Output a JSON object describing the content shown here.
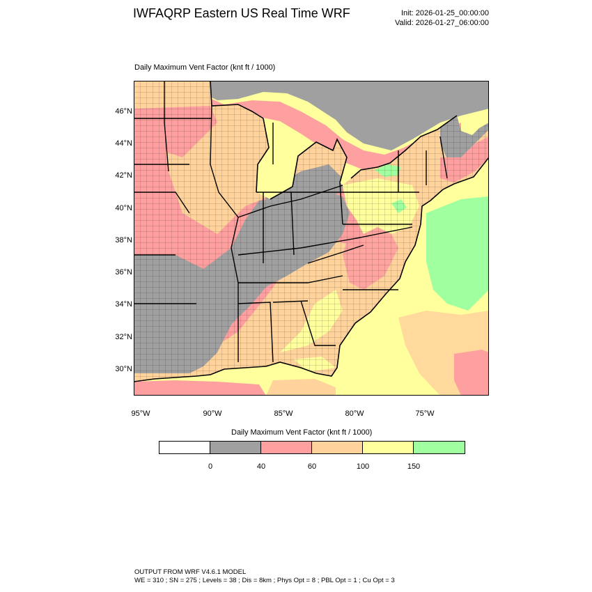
{
  "header": {
    "title": "IWFAQRP Eastern US Real Time WRF",
    "init": "Init: 2026-01-25_00:00:00",
    "valid": "Valid: 2026-01-27_06:00:00"
  },
  "map": {
    "title": "Daily Maximum Vent Factor   (knt ft / 1000)",
    "lat_labels": [
      "46°N",
      "44°N",
      "42°N",
      "40°N",
      "38°N",
      "36°N",
      "34°N",
      "32°N",
      "30°N"
    ],
    "lon_labels": [
      "95°W",
      "90°W",
      "85°W",
      "80°W",
      "75°W"
    ]
  },
  "legend": {
    "title": "Daily Maximum Vent Factor  (knt ft / 1000)",
    "colors": [
      "#ffffff",
      "#a0a0a0",
      "#ffa0a0",
      "#ffd39b",
      "#ffff9e",
      "#a0ff9e"
    ],
    "ticks": [
      "0",
      "40",
      "60",
      "100",
      "150"
    ]
  },
  "footer": {
    "line1": "OUTPUT FROM WRF V4.6.1 MODEL",
    "line2": "WE = 310 ; SN = 275 ; Levels = 38 ; Dis = 8km ; Phys Opt = 8 ; PBL Opt = 1 ; Cu Opt = 3"
  }
}
